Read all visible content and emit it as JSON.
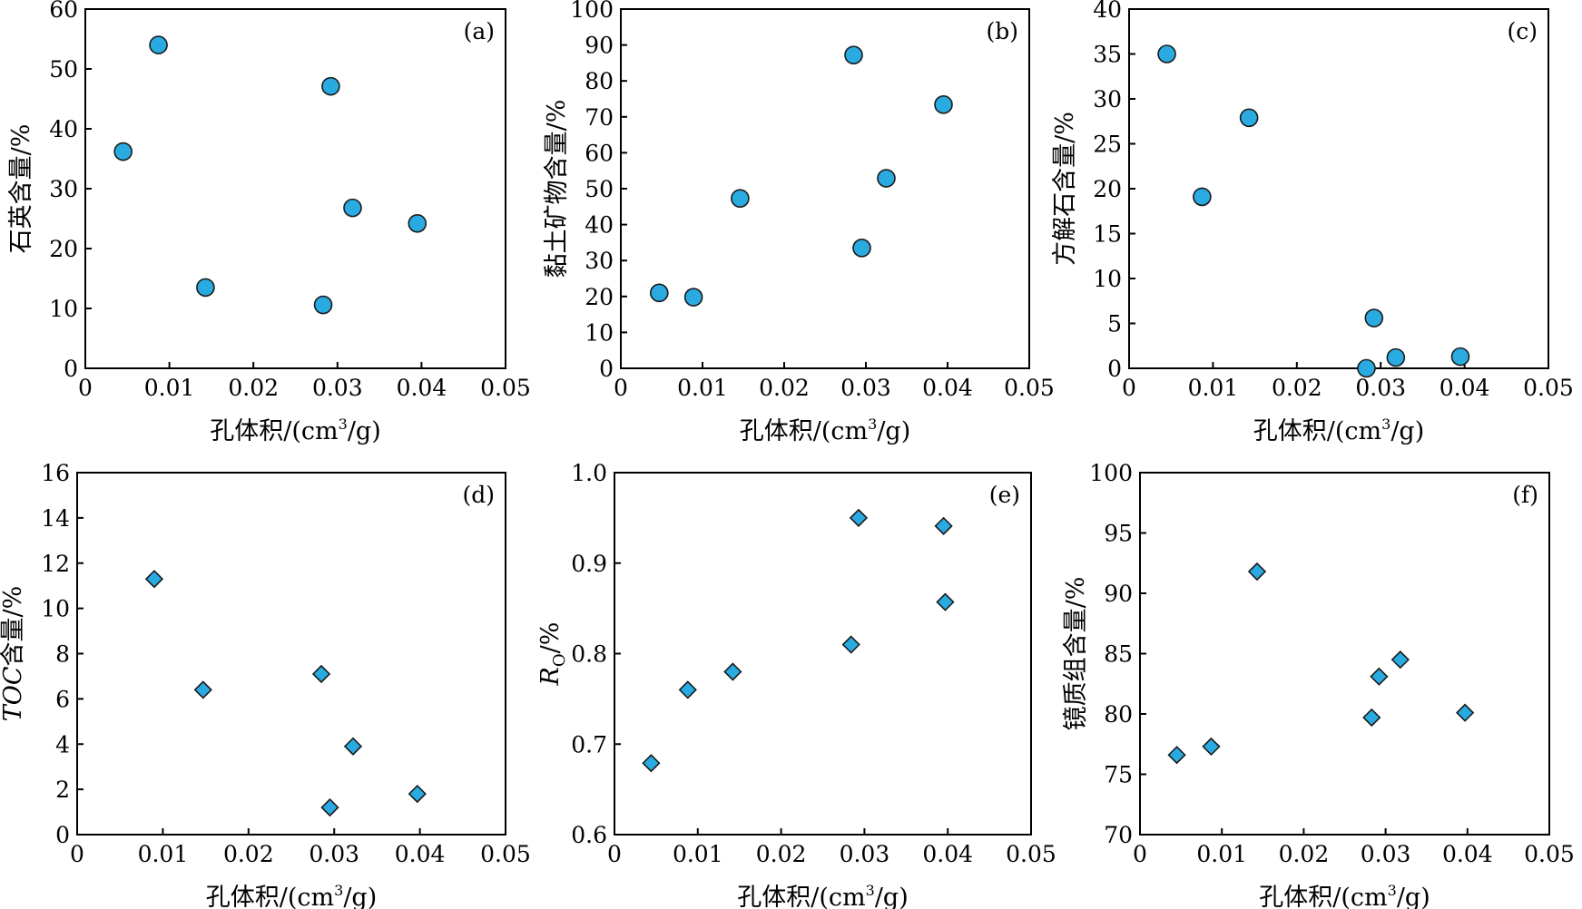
{
  "figure": {
    "marker_fill": "#29ABE2",
    "marker_stroke": "#1a1a1a",
    "axis_color": "#000000"
  },
  "chart_data": [
    {
      "type": "scatter",
      "panel_label": "(a)",
      "marker": "circle",
      "xlabel_main": "孔体积/(cm",
      "xlabel_sup": "3",
      "xlabel_tail": "/g)",
      "ylabel": "石英含量/%",
      "xlim": [
        0,
        0.05
      ],
      "ylim": [
        0,
        60
      ],
      "xticks": [
        "0",
        "0.01",
        "0.02",
        "0.03",
        "0.04",
        "0.05"
      ],
      "yticks": [
        "0",
        "10",
        "20",
        "30",
        "40",
        "50",
        "60"
      ],
      "points": [
        {
          "x": 0.0045,
          "y": 36.2
        },
        {
          "x": 0.0087,
          "y": 54.0
        },
        {
          "x": 0.0143,
          "y": 13.5
        },
        {
          "x": 0.0283,
          "y": 10.6
        },
        {
          "x": 0.0292,
          "y": 47.1
        },
        {
          "x": 0.0318,
          "y": 26.8
        },
        {
          "x": 0.0395,
          "y": 24.2
        }
      ]
    },
    {
      "type": "scatter",
      "panel_label": "(b)",
      "marker": "circle",
      "xlabel_main": "孔体积/(cm",
      "xlabel_sup": "3",
      "xlabel_tail": "/g)",
      "ylabel": "黏土矿物含量/%",
      "xlim": [
        0,
        0.05
      ],
      "ylim": [
        0,
        100
      ],
      "xticks": [
        "0",
        "0.01",
        "0.02",
        "0.03",
        "0.04",
        "0.05"
      ],
      "yticks": [
        "0",
        "10",
        "20",
        "30",
        "40",
        "50",
        "60",
        "70",
        "80",
        "90",
        "100"
      ],
      "points": [
        {
          "x": 0.0047,
          "y": 21.0
        },
        {
          "x": 0.0089,
          "y": 19.8
        },
        {
          "x": 0.0146,
          "y": 47.3
        },
        {
          "x": 0.0285,
          "y": 87.2
        },
        {
          "x": 0.0295,
          "y": 33.5
        },
        {
          "x": 0.0325,
          "y": 52.9
        },
        {
          "x": 0.0395,
          "y": 73.4
        }
      ]
    },
    {
      "type": "scatter",
      "panel_label": "(c)",
      "marker": "circle",
      "xlabel_main": "孔体积/(cm",
      "xlabel_sup": "3",
      "xlabel_tail": "/g)",
      "ylabel": "方解石含量/%",
      "xlim": [
        0,
        0.05
      ],
      "ylim": [
        0,
        40
      ],
      "xticks": [
        "0",
        "0.01",
        "0.02",
        "0.03",
        "0.04",
        "0.05"
      ],
      "yticks": [
        "0",
        "5",
        "10",
        "15",
        "20",
        "25",
        "30",
        "35",
        "40"
      ],
      "points": [
        {
          "x": 0.0045,
          "y": 35.0
        },
        {
          "x": 0.0087,
          "y": 19.1
        },
        {
          "x": 0.0143,
          "y": 27.9
        },
        {
          "x": 0.0283,
          "y": 0.0
        },
        {
          "x": 0.0292,
          "y": 5.6
        },
        {
          "x": 0.0318,
          "y": 1.2
        },
        {
          "x": 0.0395,
          "y": 1.3
        }
      ]
    },
    {
      "type": "scatter",
      "panel_label": "(d)",
      "marker": "diamond",
      "xlabel_main": "孔体积/(cm",
      "xlabel_sup": "3",
      "xlabel_tail": "/g)",
      "ylabel_italic": "TOC",
      "ylabel": "含量/%",
      "xlim": [
        0,
        0.05
      ],
      "ylim": [
        0,
        16
      ],
      "xticks": [
        "0",
        "0.01",
        "0.02",
        "0.03",
        "0.04",
        "0.05"
      ],
      "yticks": [
        "0",
        "2",
        "4",
        "6",
        "8",
        "10",
        "12",
        "14",
        "16"
      ],
      "points": [
        {
          "x": 0.009,
          "y": 11.3
        },
        {
          "x": 0.0147,
          "y": 6.4
        },
        {
          "x": 0.0285,
          "y": 7.1
        },
        {
          "x": 0.0295,
          "y": 1.2
        },
        {
          "x": 0.0322,
          "y": 3.9
        },
        {
          "x": 0.0397,
          "y": 1.8
        }
      ]
    },
    {
      "type": "scatter",
      "panel_label": "(e)",
      "marker": "diamond",
      "xlabel_main": "孔体积/(cm",
      "xlabel_sup": "3",
      "xlabel_tail": "/g)",
      "ylabel_italic": "R",
      "ylabel_sub": "O",
      "ylabel": "/%",
      "xlim": [
        0,
        0.05
      ],
      "ylim": [
        0.6,
        1.0
      ],
      "xticks": [
        "0",
        "0.01",
        "0.02",
        "0.03",
        "0.04",
        "0.05"
      ],
      "yticks": [
        "0.6",
        "0.7",
        "0.8",
        "0.9",
        "1.0"
      ],
      "points": [
        {
          "x": 0.0044,
          "y": 0.679
        },
        {
          "x": 0.0088,
          "y": 0.76
        },
        {
          "x": 0.0142,
          "y": 0.78
        },
        {
          "x": 0.0284,
          "y": 0.81
        },
        {
          "x": 0.0293,
          "y": 0.95
        },
        {
          "x": 0.0395,
          "y": 0.941
        },
        {
          "x": 0.0397,
          "y": 0.857
        }
      ]
    },
    {
      "type": "scatter",
      "panel_label": "(f)",
      "marker": "diamond",
      "xlabel_main": "孔体积/(cm",
      "xlabel_sup": "3",
      "xlabel_tail": "/g)",
      "ylabel": "镜质组含量/%",
      "xlim": [
        0,
        0.05
      ],
      "ylim": [
        70,
        100
      ],
      "xticks": [
        "0",
        "0.01",
        "0.02",
        "0.03",
        "0.04",
        "0.05"
      ],
      "yticks": [
        "70",
        "75",
        "80",
        "85",
        "90",
        "95",
        "100"
      ],
      "points": [
        {
          "x": 0.0045,
          "y": 76.6
        },
        {
          "x": 0.0087,
          "y": 77.3
        },
        {
          "x": 0.0143,
          "y": 91.8
        },
        {
          "x": 0.0283,
          "y": 79.7
        },
        {
          "x": 0.0292,
          "y": 83.1
        },
        {
          "x": 0.0318,
          "y": 84.5
        },
        {
          "x": 0.0397,
          "y": 80.1
        }
      ]
    }
  ]
}
